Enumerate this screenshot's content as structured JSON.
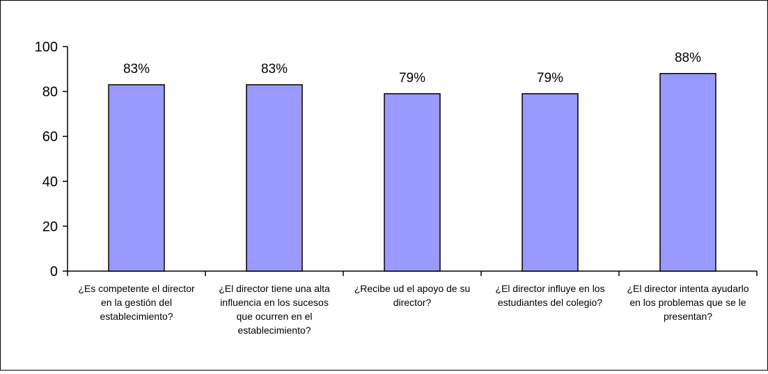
{
  "chart_data": {
    "type": "bar",
    "title": "",
    "xlabel": "",
    "ylabel": "",
    "ylim": [
      0,
      100
    ],
    "yticks": [
      0,
      20,
      40,
      60,
      80,
      100
    ],
    "grid": false,
    "legend": "none",
    "bar_color": "#9999ff",
    "bar_stroke": "#000000",
    "categories": [
      [
        "¿Es competente el director",
        "en la gestión del",
        "establecimiento?"
      ],
      [
        "¿El director tiene una alta",
        "influencia en los sucesos",
        "que ocurren en el",
        "establecimiento?"
      ],
      [
        "¿Recibe ud el apoyo de su",
        "director?"
      ],
      [
        "¿El director influye en los",
        "estudiantes del colegio?"
      ],
      [
        "¿El director intenta ayudarlo",
        "en los problemas que se le",
        "presentan?"
      ]
    ],
    "values": [
      83,
      83,
      79,
      79,
      88
    ],
    "data_labels": [
      "83%",
      "83%",
      "79%",
      "79%",
      "88%"
    ]
  }
}
